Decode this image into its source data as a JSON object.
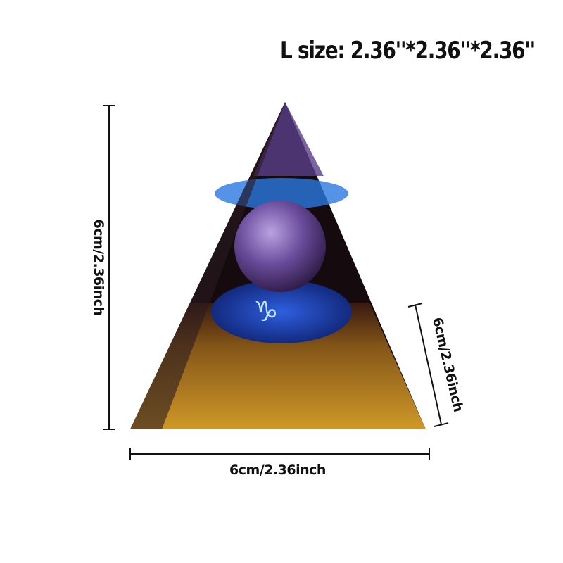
{
  "title": "L size: 2.36''*2.36''*2.36''",
  "dimensions": {
    "height_label": "6cm/2.36inch",
    "depth_label": "6cm/2.36inch",
    "width_label": "6cm/2.36inch"
  },
  "product": {
    "symbol": "♑",
    "colors": {
      "crystal_sphere": "#6a4c9c",
      "base_flakes": "#c8901c",
      "disc": "#1d3fa8",
      "body": "#1a0d10"
    }
  }
}
